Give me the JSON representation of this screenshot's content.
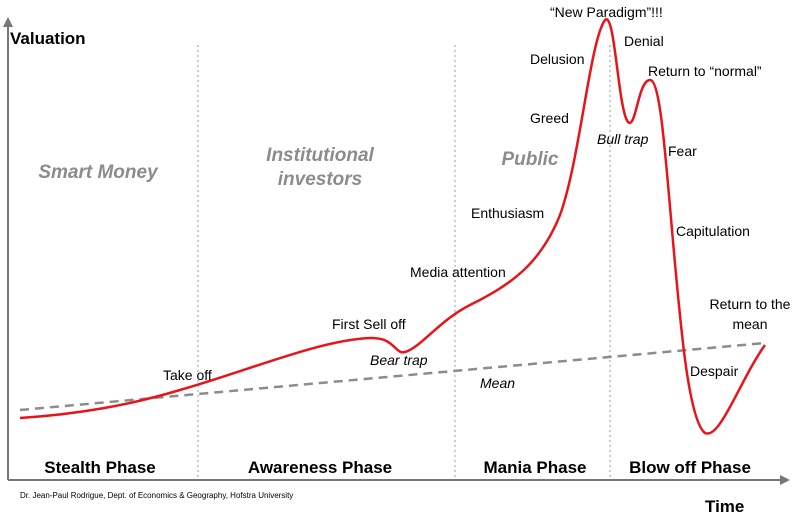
{
  "axes": {
    "y_label": "Valuation",
    "x_label": "Time"
  },
  "phases": [
    "Stealth Phase",
    "Awareness Phase",
    "Mania Phase",
    "Blow off Phase"
  ],
  "groups": [
    "Smart Money",
    "Institutional investors",
    "Public"
  ],
  "curve_labels": [
    "Take off",
    "First Sell off",
    "Bear trap",
    "Media attention",
    "Enthusiasm",
    "Greed",
    "Delusion",
    "“New Paradigm”!!!",
    "Denial",
    "Bull trap",
    "Return to “normal”",
    "Fear",
    "Capitulation",
    "Despair",
    "Return to the mean"
  ],
  "mean_label": "Mean",
  "credit": "Dr. Jean-Paul Rodrigue, Dept. of Economics & Geography, Hofstra University"
}
